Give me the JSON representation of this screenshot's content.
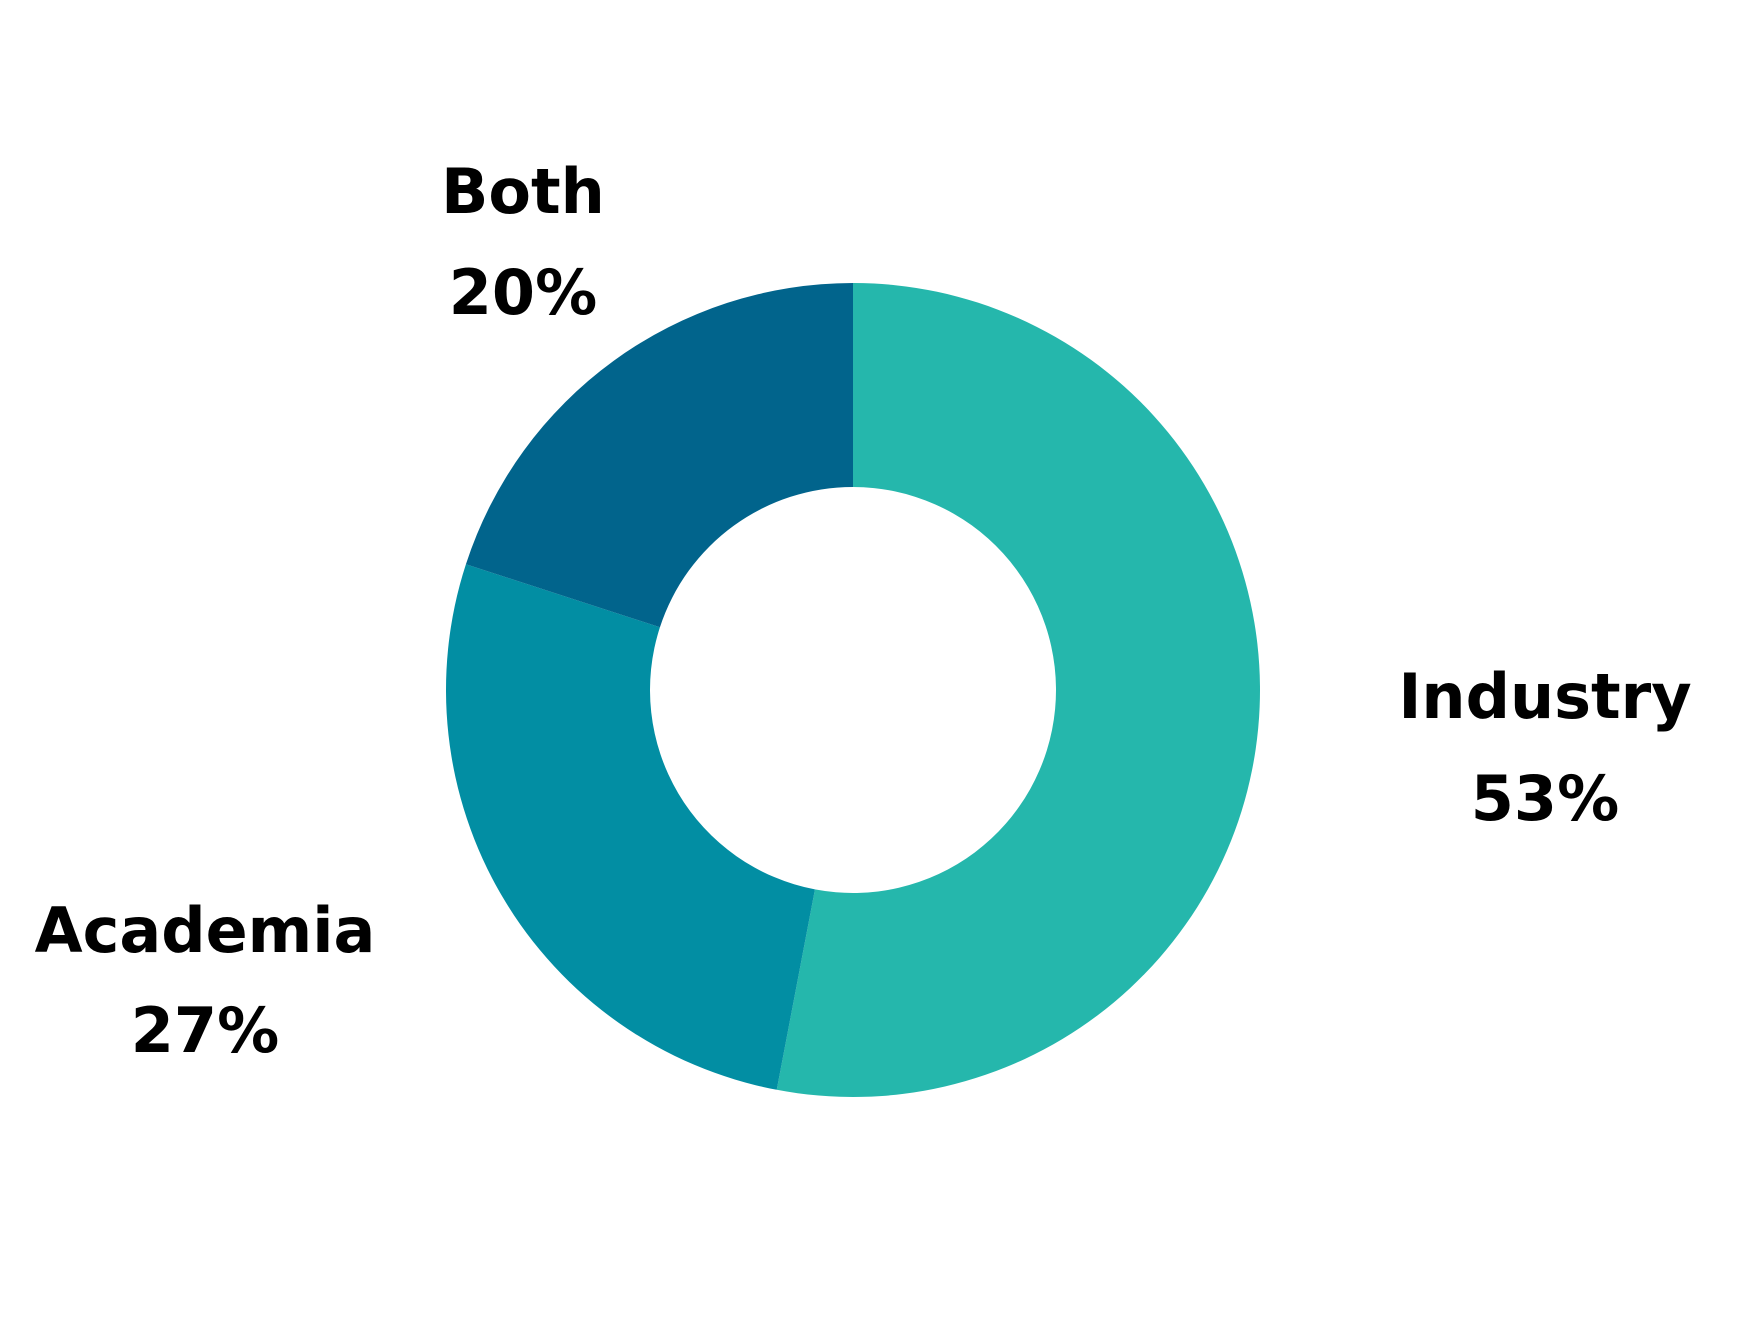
{
  "chart_data": {
    "type": "pie",
    "donut": true,
    "title": "",
    "slices": [
      {
        "label": "Industry",
        "value": 53,
        "value_label": "53%",
        "color": "#25b7ac"
      },
      {
        "label": "Academia",
        "value": 27,
        "value_label": "27%",
        "color": "#028ea3"
      },
      {
        "label": "Both",
        "value": 20,
        "value_label": "20%",
        "color": "#01648c"
      }
    ],
    "start": "12 o'clock",
    "direction": "clockwise",
    "legend": "none"
  }
}
